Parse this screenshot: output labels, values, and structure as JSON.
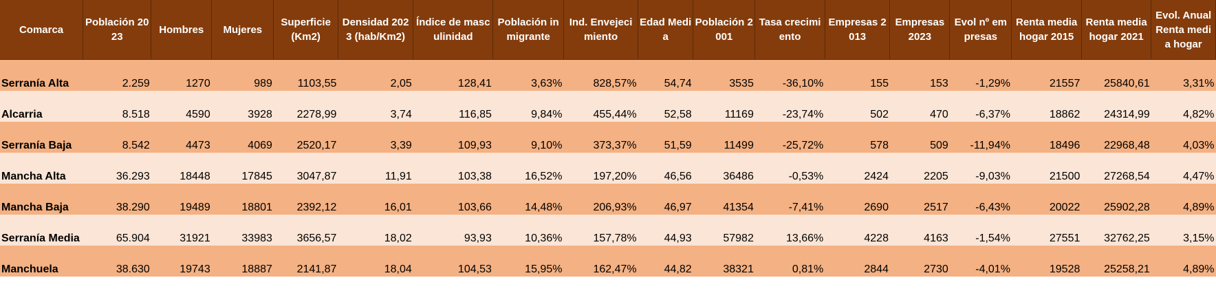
{
  "table": {
    "columns": [
      "Comarca",
      "Población 2023",
      "Hombres",
      "Mujeres",
      "Superficie (Km2)",
      "Densidad 2023 (hab/Km2)",
      "Índice de masculinidad",
      "Población inmigrante",
      "Ind. Envejecimiento",
      "Edad Media",
      "Población 2001",
      "Tasa crecimiento",
      "Empresas 2013",
      "Empresas 2023",
      "Evol nº empresas",
      "Renta media hogar 2015",
      "Renta media hogar 2021",
      "Evol. Anual Renta media hogar"
    ],
    "rows": [
      [
        "Serranía Alta",
        "2.259",
        "1270",
        "989",
        "1103,55",
        "2,05",
        "128,41",
        "3,63%",
        "828,57%",
        "54,74",
        "3535",
        "-36,10%",
        "155",
        "153",
        "-1,29%",
        "21557",
        "25840,61",
        "3,31%"
      ],
      [
        "Alcarria",
        "8.518",
        "4590",
        "3928",
        "2278,99",
        "3,74",
        "116,85",
        "9,84%",
        "455,44%",
        "52,58",
        "11169",
        "-23,74%",
        "502",
        "470",
        "-6,37%",
        "18862",
        "24314,99",
        "4,82%"
      ],
      [
        "Serranía Baja",
        "8.542",
        "4473",
        "4069",
        "2520,17",
        "3,39",
        "109,93",
        "9,10%",
        "373,37%",
        "51,59",
        "11499",
        "-25,72%",
        "578",
        "509",
        "-11,94%",
        "18496",
        "22968,48",
        "4,03%"
      ],
      [
        "Mancha Alta",
        "36.293",
        "18448",
        "17845",
        "3047,87",
        "11,91",
        "103,38",
        "16,52%",
        "197,20%",
        "46,56",
        "36486",
        "-0,53%",
        "2424",
        "2205",
        "-9,03%",
        "21500",
        "27268,54",
        "4,47%"
      ],
      [
        "Mancha Baja",
        "38.290",
        "19489",
        "18801",
        "2392,12",
        "16,01",
        "103,66",
        "14,48%",
        "206,93%",
        "46,97",
        "41354",
        "-7,41%",
        "2690",
        "2517",
        "-6,43%",
        "20022",
        "25902,28",
        "4,89%"
      ],
      [
        "Serranía Media",
        "65.904",
        "31921",
        "33983",
        "3656,57",
        "18,02",
        "93,93",
        "10,36%",
        "157,78%",
        "44,93",
        "57982",
        "13,66%",
        "4228",
        "4163",
        "-1,54%",
        "27551",
        "32762,25",
        "3,15%"
      ],
      [
        "Manchuela",
        "38.630",
        "19743",
        "18887",
        "2141,87",
        "18,04",
        "104,53",
        "15,95%",
        "162,47%",
        "44,82",
        "38321",
        "0,81%",
        "2844",
        "2730",
        "-4,01%",
        "19528",
        "25258,21",
        "4,89%"
      ]
    ]
  }
}
